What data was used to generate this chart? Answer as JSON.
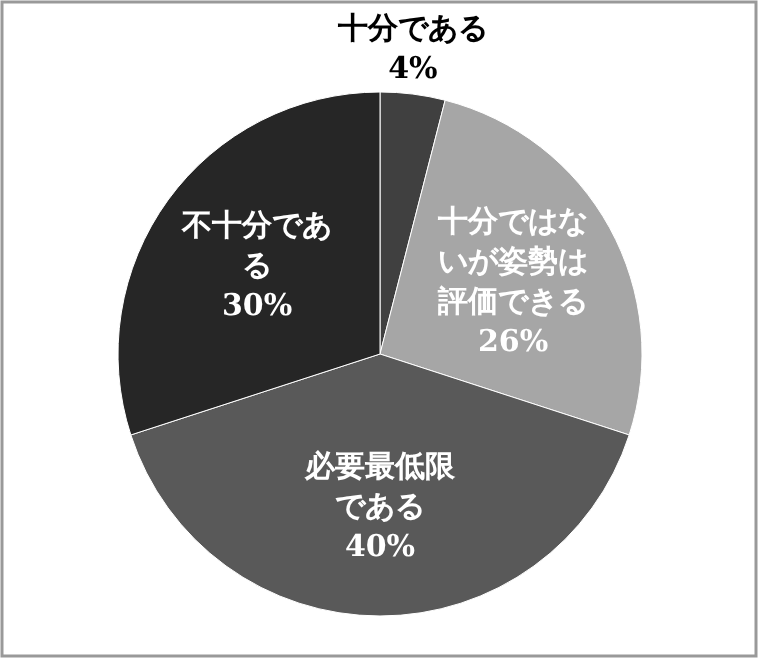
{
  "chart_data": {
    "type": "pie",
    "categories": [
      "十分である",
      "十分ではないが姿勢は評価できる",
      "必要最低限である",
      "不十分である"
    ],
    "values": [
      4,
      26,
      40,
      30
    ],
    "colors": [
      "#404040",
      "#a6a6a6",
      "#595959",
      "#262626"
    ],
    "value_labels": [
      "4%",
      "26%",
      "40%",
      "30%"
    ]
  }
}
